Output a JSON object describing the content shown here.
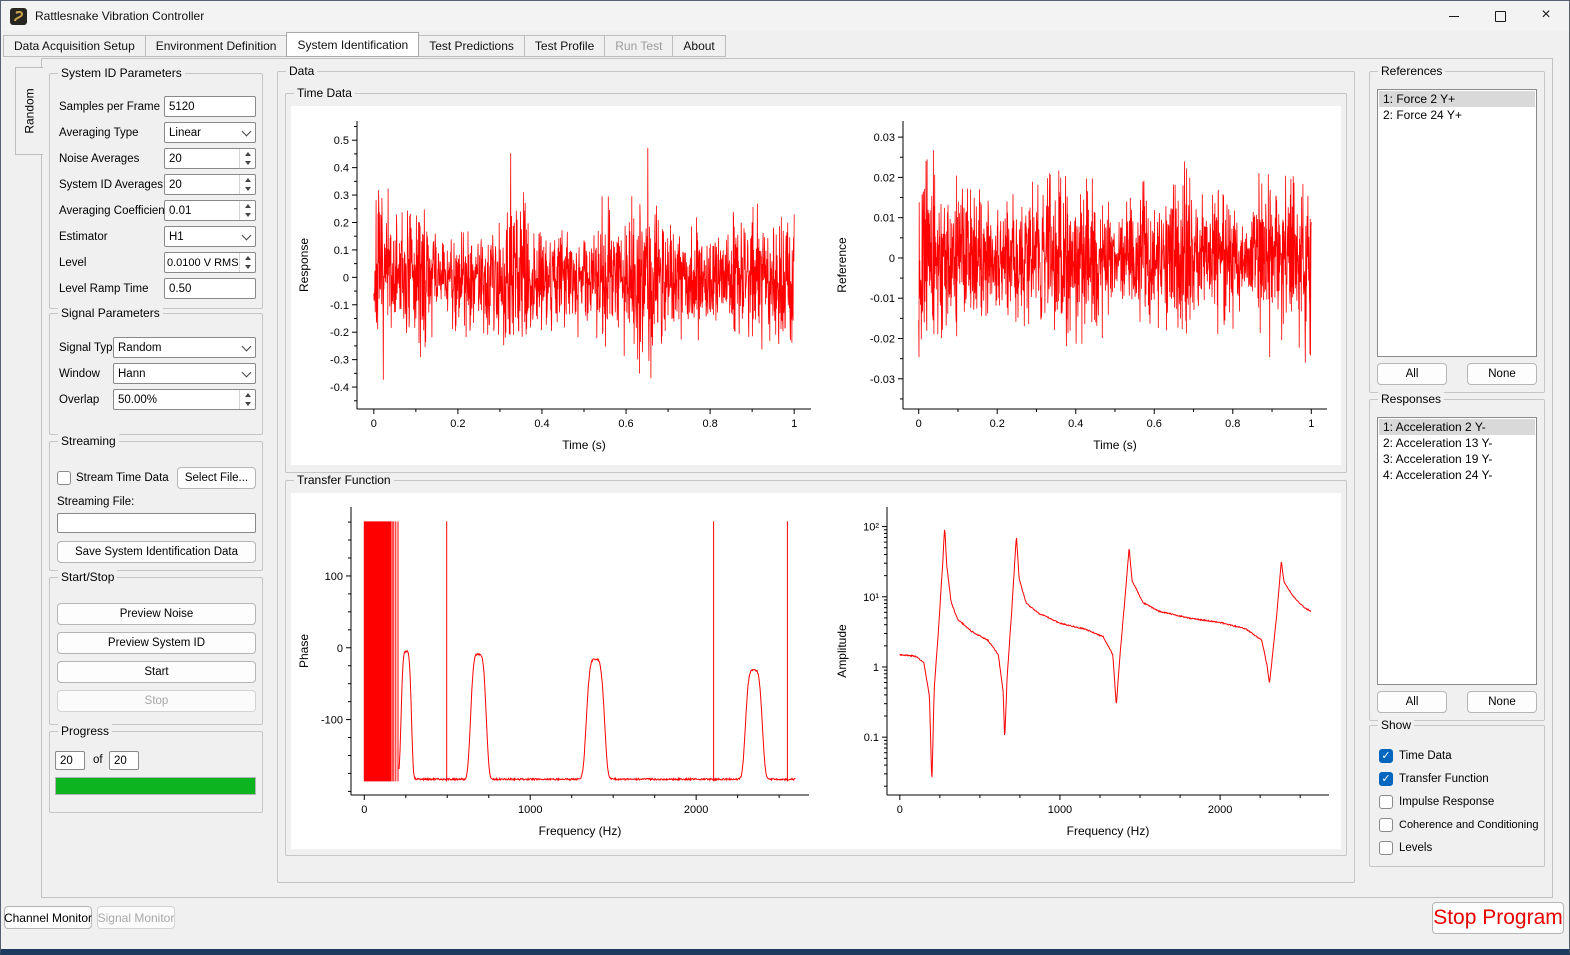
{
  "window": {
    "title": "Rattlesnake Vibration Controller"
  },
  "tabs": {
    "items": [
      {
        "label": "Data Acquisition Setup",
        "active": false,
        "disabled": false
      },
      {
        "label": "Environment Definition",
        "active": false,
        "disabled": false
      },
      {
        "label": "System Identification",
        "active": true,
        "disabled": false
      },
      {
        "label": "Test Predictions",
        "active": false,
        "disabled": false
      },
      {
        "label": "Test Profile",
        "active": false,
        "disabled": false
      },
      {
        "label": "Run Test",
        "active": false,
        "disabled": true
      },
      {
        "label": "About",
        "active": false,
        "disabled": false
      }
    ]
  },
  "side_tab": {
    "label": "Random"
  },
  "left": {
    "system_id": {
      "title": "System ID Parameters",
      "rows": [
        {
          "label": "Samples per Frame",
          "value": "5120",
          "control": "input"
        },
        {
          "label": "Averaging Type",
          "value": "Linear",
          "control": "select"
        },
        {
          "label": "Noise Averages",
          "value": "20",
          "control": "spin"
        },
        {
          "label": "System ID Averages",
          "value": "20",
          "control": "spin"
        },
        {
          "label": "Averaging Coefficient",
          "value": "0.01",
          "control": "spin"
        },
        {
          "label": "Estimator",
          "value": "H1",
          "control": "select"
        },
        {
          "label": "Level",
          "value": "0.0100 V RMS",
          "control": "spin"
        },
        {
          "label": "Level Ramp Time",
          "value": "0.50",
          "control": "input"
        }
      ]
    },
    "signal": {
      "title": "Signal Parameters",
      "rows": [
        {
          "label": "Signal Type",
          "value": "Random",
          "control": "select"
        },
        {
          "label": "Window",
          "value": "Hann",
          "control": "select"
        },
        {
          "label": "Overlap",
          "value": "50.00%",
          "control": "spin"
        }
      ]
    },
    "streaming": {
      "title": "Streaming",
      "checkbox_label": "Stream Time Data",
      "checkbox_checked": false,
      "select_file_button": "Select File...",
      "file_label": "Streaming File:",
      "file_value": "",
      "save_button": "Save System Identification Data"
    },
    "startstop": {
      "title": "Start/Stop",
      "buttons": [
        {
          "label": "Preview Noise",
          "disabled": false
        },
        {
          "label": "Preview System ID",
          "disabled": false
        },
        {
          "label": "Start",
          "disabled": false
        },
        {
          "label": "Stop",
          "disabled": true
        }
      ]
    },
    "progress": {
      "title": "Progress",
      "current": "20",
      "separator": "of",
      "total": "20",
      "percent": 100
    }
  },
  "data_section": {
    "title": "Data",
    "time_data_title": "Time Data",
    "transfer_function_title": "Transfer Function"
  },
  "references": {
    "title": "References",
    "items": [
      {
        "label": "1: Force 2 Y+",
        "selected": true
      },
      {
        "label": "2: Force 24 Y+",
        "selected": false
      }
    ],
    "all_button": "All",
    "none_button": "None"
  },
  "responses": {
    "title": "Responses",
    "items": [
      {
        "label": "1: Acceleration 2 Y-",
        "selected": true
      },
      {
        "label": "2: Acceleration 13 Y-",
        "selected": false
      },
      {
        "label": "3: Acceleration 19 Y-",
        "selected": false
      },
      {
        "label": "4: Acceleration 24 Y-",
        "selected": false
      }
    ],
    "all_button": "All",
    "none_button": "None"
  },
  "show": {
    "title": "Show",
    "options": [
      {
        "label": "Time Data",
        "checked": true
      },
      {
        "label": "Transfer Function",
        "checked": true
      },
      {
        "label": "Impulse Response",
        "checked": false
      },
      {
        "label": "Coherence and Conditioning",
        "checked": false
      },
      {
        "label": "Levels",
        "checked": false
      }
    ]
  },
  "bottom": {
    "channel_monitor": "Channel Monitor",
    "signal_monitor": "Signal Monitor",
    "signal_monitor_disabled": true,
    "stop_program": "Stop Program"
  },
  "colors": {
    "plot_line": "#ff0000",
    "progress_green": "#0cb420",
    "accent_checkbox": "#0066bf",
    "stop_text": "#e90000",
    "selection_gray": "#d9d9d9"
  },
  "chart_data": [
    {
      "id": "response_time",
      "type": "line",
      "xlabel": "Time (s)",
      "ylabel": "Response",
      "xlim": [
        -0.04,
        1.04
      ],
      "ylim": [
        -0.48,
        0.57
      ],
      "xticks": [
        0,
        0.2,
        0.4,
        0.6,
        0.8,
        1
      ],
      "xminor": 0.1,
      "yticks": [
        0.5,
        0.4,
        0.3,
        0.2,
        0.1,
        0,
        -0.1,
        -0.2,
        -0.3,
        -0.4
      ],
      "yminor": 0.05,
      "series": {
        "kind": "random-noise",
        "sigma": 0.105,
        "spike_gain": 1.75,
        "spike_every": 163,
        "seed": 7,
        "points": 1500,
        "peak_abs": 0.51
      }
    },
    {
      "id": "reference_time",
      "type": "line",
      "xlabel": "Time (s)",
      "ylabel": "Reference",
      "xlim": [
        -0.04,
        1.04
      ],
      "ylim": [
        -0.0375,
        0.034
      ],
      "xticks": [
        0,
        0.2,
        0.4,
        0.6,
        0.8,
        1
      ],
      "xminor": 0.1,
      "yticks": [
        0.03,
        0.02,
        0.01,
        0,
        -0.01,
        -0.02,
        -0.03
      ],
      "yminor": 0.005,
      "series": {
        "kind": "random-noise",
        "sigma": 0.0078,
        "spike_gain": 1.6,
        "spike_every": 149,
        "seed": 13,
        "points": 1500,
        "peak_abs": 0.031
      }
    },
    {
      "id": "phase_tf",
      "type": "line",
      "xlabel": "Frequency (Hz)",
      "ylabel": "Phase",
      "xlim": [
        -80,
        2680
      ],
      "ylim": [
        -205,
        196
      ],
      "xticks": [
        0,
        1000,
        2000
      ],
      "xminor": 250,
      "yticks": [
        100,
        0,
        -100
      ],
      "yminor": 25,
      "series": {
        "kind": "phase-frf",
        "baseline": -183,
        "solid_band": [
          0,
          148
        ],
        "band_lines": [
          154,
          160,
          168,
          178,
          190,
          203
        ],
        "spike_lines": [
          497,
          2105,
          2550
        ],
        "clip": [
          -186,
          176
        ],
        "bumps": [
          {
            "center": 253,
            "width": 34,
            "top": -5
          },
          {
            "center": 688,
            "width": 52,
            "top": -9
          },
          {
            "center": 1393,
            "width": 60,
            "top": -16
          },
          {
            "center": 2348,
            "width": 56,
            "top": -31
          }
        ]
      }
    },
    {
      "id": "amplitude_tf",
      "type": "line",
      "log_y": true,
      "xlabel": "Frequency (Hz)",
      "ylabel": "Amplitude",
      "xlim": [
        -80,
        2680
      ],
      "ylim": [
        0.015,
        190
      ],
      "xticks": [
        0,
        1000,
        2000
      ],
      "xminor": 250,
      "yticks": [
        100,
        10,
        1,
        0.1
      ],
      "ytick_labels": [
        "10²",
        "10¹",
        "1",
        "0.1"
      ],
      "series": {
        "kind": "frf-keypoints",
        "resonances_hz": [
          280,
          730,
          1432,
          2382
        ],
        "antiresonances_hz": [
          200,
          655,
          1352,
          2308
        ],
        "keypoints": [
          [
            0,
            1.5
          ],
          [
            100,
            1.42
          ],
          [
            150,
            1.15
          ],
          [
            185,
            0.38
          ],
          [
            200,
            0.022
          ],
          [
            215,
            0.5
          ],
          [
            240,
            3
          ],
          [
            268,
            30
          ],
          [
            280,
            100
          ],
          [
            293,
            28
          ],
          [
            320,
            8.5
          ],
          [
            360,
            4.8
          ],
          [
            450,
            3.2
          ],
          [
            550,
            2.4
          ],
          [
            615,
            1.5
          ],
          [
            645,
            0.45
          ],
          [
            655,
            0.09
          ],
          [
            670,
            0.7
          ],
          [
            700,
            7
          ],
          [
            728,
            75
          ],
          [
            745,
            18
          ],
          [
            790,
            8
          ],
          [
            870,
            5.8
          ],
          [
            1000,
            4.2
          ],
          [
            1150,
            3.5
          ],
          [
            1270,
            2.7
          ],
          [
            1330,
            1.5
          ],
          [
            1352,
            0.28
          ],
          [
            1375,
            1.5
          ],
          [
            1405,
            9
          ],
          [
            1432,
            50
          ],
          [
            1450,
            17
          ],
          [
            1520,
            8.2
          ],
          [
            1620,
            6.2
          ],
          [
            1800,
            5.0
          ],
          [
            2000,
            4.3
          ],
          [
            2160,
            3.5
          ],
          [
            2260,
            2.4
          ],
          [
            2295,
            1.0
          ],
          [
            2308,
            0.57
          ],
          [
            2325,
            1.3
          ],
          [
            2355,
            6
          ],
          [
            2382,
            32
          ],
          [
            2400,
            16
          ],
          [
            2460,
            10
          ],
          [
            2520,
            7.2
          ],
          [
            2570,
            6.1
          ]
        ]
      }
    }
  ]
}
